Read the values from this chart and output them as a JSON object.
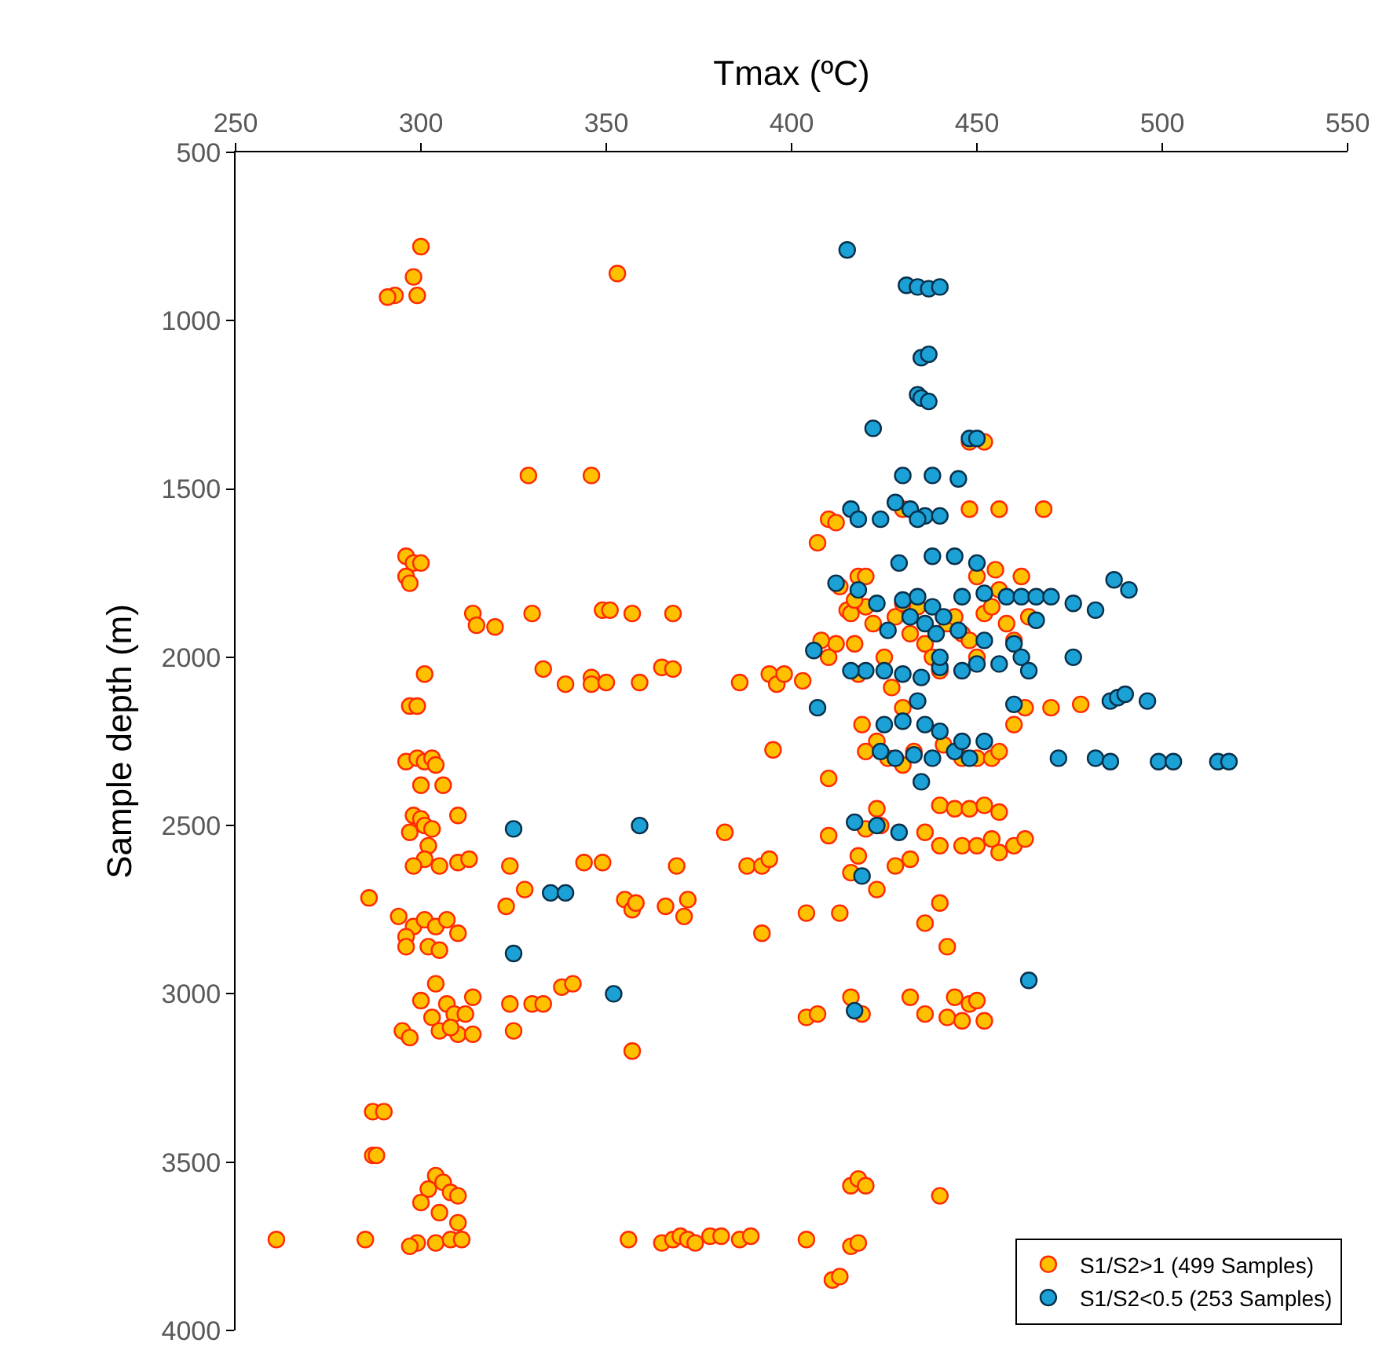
{
  "chart_data": {
    "type": "scatter",
    "xlabel": "Tmax (ºC)",
    "ylabel": "Sample depth (m)",
    "xlim": [
      250,
      550
    ],
    "xticks": [
      250,
      300,
      350,
      400,
      450,
      500,
      550
    ],
    "ylim": [
      4000,
      500
    ],
    "yticks": [
      500,
      1000,
      1500,
      2000,
      2500,
      3000,
      3500,
      4000
    ],
    "grid": false,
    "legend": "bottom right",
    "marker": "circle",
    "series": [
      {
        "name": "S1/S2>1 (499 Samples)",
        "color": "#ffc000",
        "x": [
          300,
          298,
          293,
          291,
          299,
          353,
          329,
          346,
          296,
          298,
          300,
          296,
          297,
          314,
          315,
          320,
          330,
          349,
          351,
          357,
          368,
          333,
          339,
          346,
          346,
          350,
          365,
          368,
          359,
          301,
          297,
          299,
          296,
          299,
          301,
          303,
          304,
          306,
          300,
          298,
          300,
          297,
          301,
          303,
          310,
          302,
          301,
          305,
          310,
          313,
          298,
          286,
          294,
          298,
          301,
          304,
          307,
          310,
          296,
          302,
          305,
          296,
          300,
          304,
          307,
          309,
          312,
          314,
          303,
          295,
          297,
          305,
          310,
          314,
          308,
          287,
          290,
          287,
          288,
          304,
          306,
          302,
          308,
          310,
          300,
          305,
          310,
          299,
          304,
          308,
          311,
          261,
          285,
          297,
          324,
          323,
          328,
          324,
          325,
          330,
          333,
          338,
          341,
          344,
          349,
          355,
          357,
          358,
          357,
          366,
          369,
          371,
          372,
          382,
          388,
          392,
          394,
          392,
          356,
          365,
          368,
          370,
          372,
          374,
          378,
          381,
          386,
          389,
          404,
          411,
          413,
          416,
          418,
          416,
          418,
          420,
          440,
          386,
          394,
          396,
          395,
          398,
          403,
          404,
          404,
          407,
          407,
          410,
          412,
          413,
          415,
          418,
          416,
          417,
          412,
          408,
          410,
          420,
          422,
          418,
          425,
          428,
          430,
          432,
          434,
          436,
          438,
          440,
          442,
          444,
          446,
          448,
          450,
          452,
          454,
          456,
          458,
          460,
          462,
          464,
          448,
          456,
          468,
          430,
          448,
          452,
          455,
          462,
          450,
          420,
          417,
          427,
          430,
          436,
          441,
          446,
          450,
          454,
          456,
          460,
          463,
          470,
          478,
          419,
          423,
          426,
          430,
          433,
          420,
          410,
          423,
          440,
          444,
          448,
          452,
          456,
          420,
          424,
          436,
          440,
          446,
          450,
          454,
          456,
          460,
          463,
          432,
          428,
          418,
          416,
          423,
          410,
          440,
          436,
          442,
          413,
          416,
          419,
          432,
          444,
          448,
          450,
          442,
          446,
          452,
          436
        ],
        "values": [
          780,
          870,
          925,
          930,
          925,
          860,
          1460,
          1460,
          1700,
          1720,
          1720,
          1760,
          1780,
          1870,
          1905,
          1910,
          1870,
          1860,
          1860,
          1870,
          1870,
          2035,
          2080,
          2060,
          2080,
          2075,
          2030,
          2035,
          2075,
          2050,
          2145,
          2145,
          2310,
          2300,
          2310,
          2300,
          2320,
          2380,
          2380,
          2470,
          2480,
          2520,
          2500,
          2510,
          2470,
          2560,
          2600,
          2620,
          2610,
          2600,
          2620,
          2715,
          2770,
          2800,
          2780,
          2800,
          2780,
          2820,
          2830,
          2860,
          2870,
          2860,
          3020,
          2970,
          3030,
          3060,
          3060,
          3010,
          3070,
          3110,
          3130,
          3110,
          3120,
          3120,
          3100,
          3350,
          3350,
          3480,
          3480,
          3540,
          3560,
          3580,
          3590,
          3600,
          3620,
          3650,
          3680,
          3740,
          3740,
          3730,
          3730,
          3730,
          3730,
          3750,
          2620,
          2740,
          2690,
          3030,
          3110,
          3030,
          3030,
          2980,
          2970,
          2610,
          2610,
          2720,
          2750,
          2730,
          3170,
          2740,
          2620,
          2770,
          2720,
          2520,
          2620,
          2620,
          2600,
          2820,
          3730,
          3740,
          3730,
          3720,
          3730,
          3740,
          3720,
          3720,
          3730,
          3720,
          3730,
          3850,
          3840,
          3750,
          3740,
          3570,
          3550,
          3570,
          3600,
          2075,
          2050,
          2080,
          2275,
          2050,
          2070,
          2760,
          3070,
          3060,
          1660,
          1590,
          1600,
          1790,
          1860,
          1760,
          1870,
          1960,
          1960,
          1950,
          2000,
          1850,
          1900,
          2050,
          2000,
          1880,
          1840,
          1930,
          1850,
          1960,
          2000,
          2040,
          1900,
          1880,
          1930,
          1950,
          2000,
          1870,
          1850,
          1800,
          1900,
          1950,
          null,
          1880,
          1560,
          1560,
          1560,
          1560,
          1360,
          1360,
          1740,
          1760,
          1760,
          1760,
          1830,
          2090,
          2150,
          null,
          2260,
          2300,
          2300,
          2300,
          2280,
          2200,
          2150,
          2150,
          2140,
          2200,
          2250,
          2300,
          2320,
          2280,
          2280,
          2360,
          2450,
          2440,
          2450,
          2450,
          2440,
          2460,
          2510,
          2500,
          2520,
          2560,
          2560,
          2560,
          2540,
          2580,
          2560,
          2540,
          2600,
          2620,
          2590,
          2640,
          2690,
          2530,
          2730,
          2790,
          2860,
          2760,
          3010,
          3060,
          3010,
          3010,
          3030,
          3020,
          3070,
          3080,
          3080,
          3060
        ]
      },
      {
        "name": "S1/S2<0.5 (253 Samples)",
        "color": "#1ba1d6",
        "x": [
          415,
          431,
          434,
          437,
          440,
          435,
          437,
          434,
          435,
          437,
          422,
          448,
          450,
          430,
          438,
          445,
          416,
          428,
          432,
          436,
          440,
          418,
          424,
          434,
          438,
          429,
          444,
          450,
          412,
          418,
          423,
          430,
          434,
          438,
          441,
          446,
          452,
          458,
          462,
          466,
          470,
          476,
          482,
          487,
          491,
          460,
          452,
          445,
          436,
          439,
          432,
          426,
          406,
          420,
          416,
          425,
          430,
          435,
          440,
          446,
          450,
          456,
          460,
          462,
          464,
          476,
          486,
          488,
          490,
          496,
          407,
          424,
          428,
          433,
          438,
          444,
          448,
          472,
          482,
          486,
          499,
          503,
          515,
          518,
          425,
          430,
          436,
          440,
          446,
          452,
          435,
          417,
          423,
          429,
          419,
          325,
          359,
          335,
          339,
          325,
          352,
          417,
          464,
          466,
          434,
          440
        ],
        "values": [
          790,
          895,
          900,
          905,
          900,
          1110,
          1100,
          1220,
          1230,
          1240,
          1320,
          1350,
          1350,
          1460,
          1460,
          1470,
          1560,
          1540,
          1560,
          1580,
          1580,
          1590,
          1590,
          1590,
          1700,
          1720,
          1700,
          1720,
          1780,
          1800,
          1840,
          1830,
          1820,
          1850,
          1880,
          1820,
          1810,
          1820,
          1820,
          1820,
          1820,
          1840,
          1860,
          1770,
          1800,
          1960,
          1950,
          1920,
          1900,
          1930,
          1880,
          1920,
          1980,
          2040,
          2040,
          2040,
          2050,
          2060,
          2030,
          2040,
          2020,
          2020,
          2140,
          2000,
          2040,
          2000,
          2130,
          2120,
          2110,
          2130,
          2150,
          2280,
          2300,
          2290,
          2300,
          2280,
          2300,
          2300,
          2300,
          2310,
          2310,
          2310,
          2310,
          2310,
          2200,
          2190,
          2200,
          2220,
          2250,
          2250,
          2370,
          2490,
          2500,
          2520,
          2650,
          2510,
          2500,
          2700,
          2700,
          2880,
          3000,
          3050,
          2960,
          1890,
          2130,
          2000
        ]
      }
    ]
  }
}
